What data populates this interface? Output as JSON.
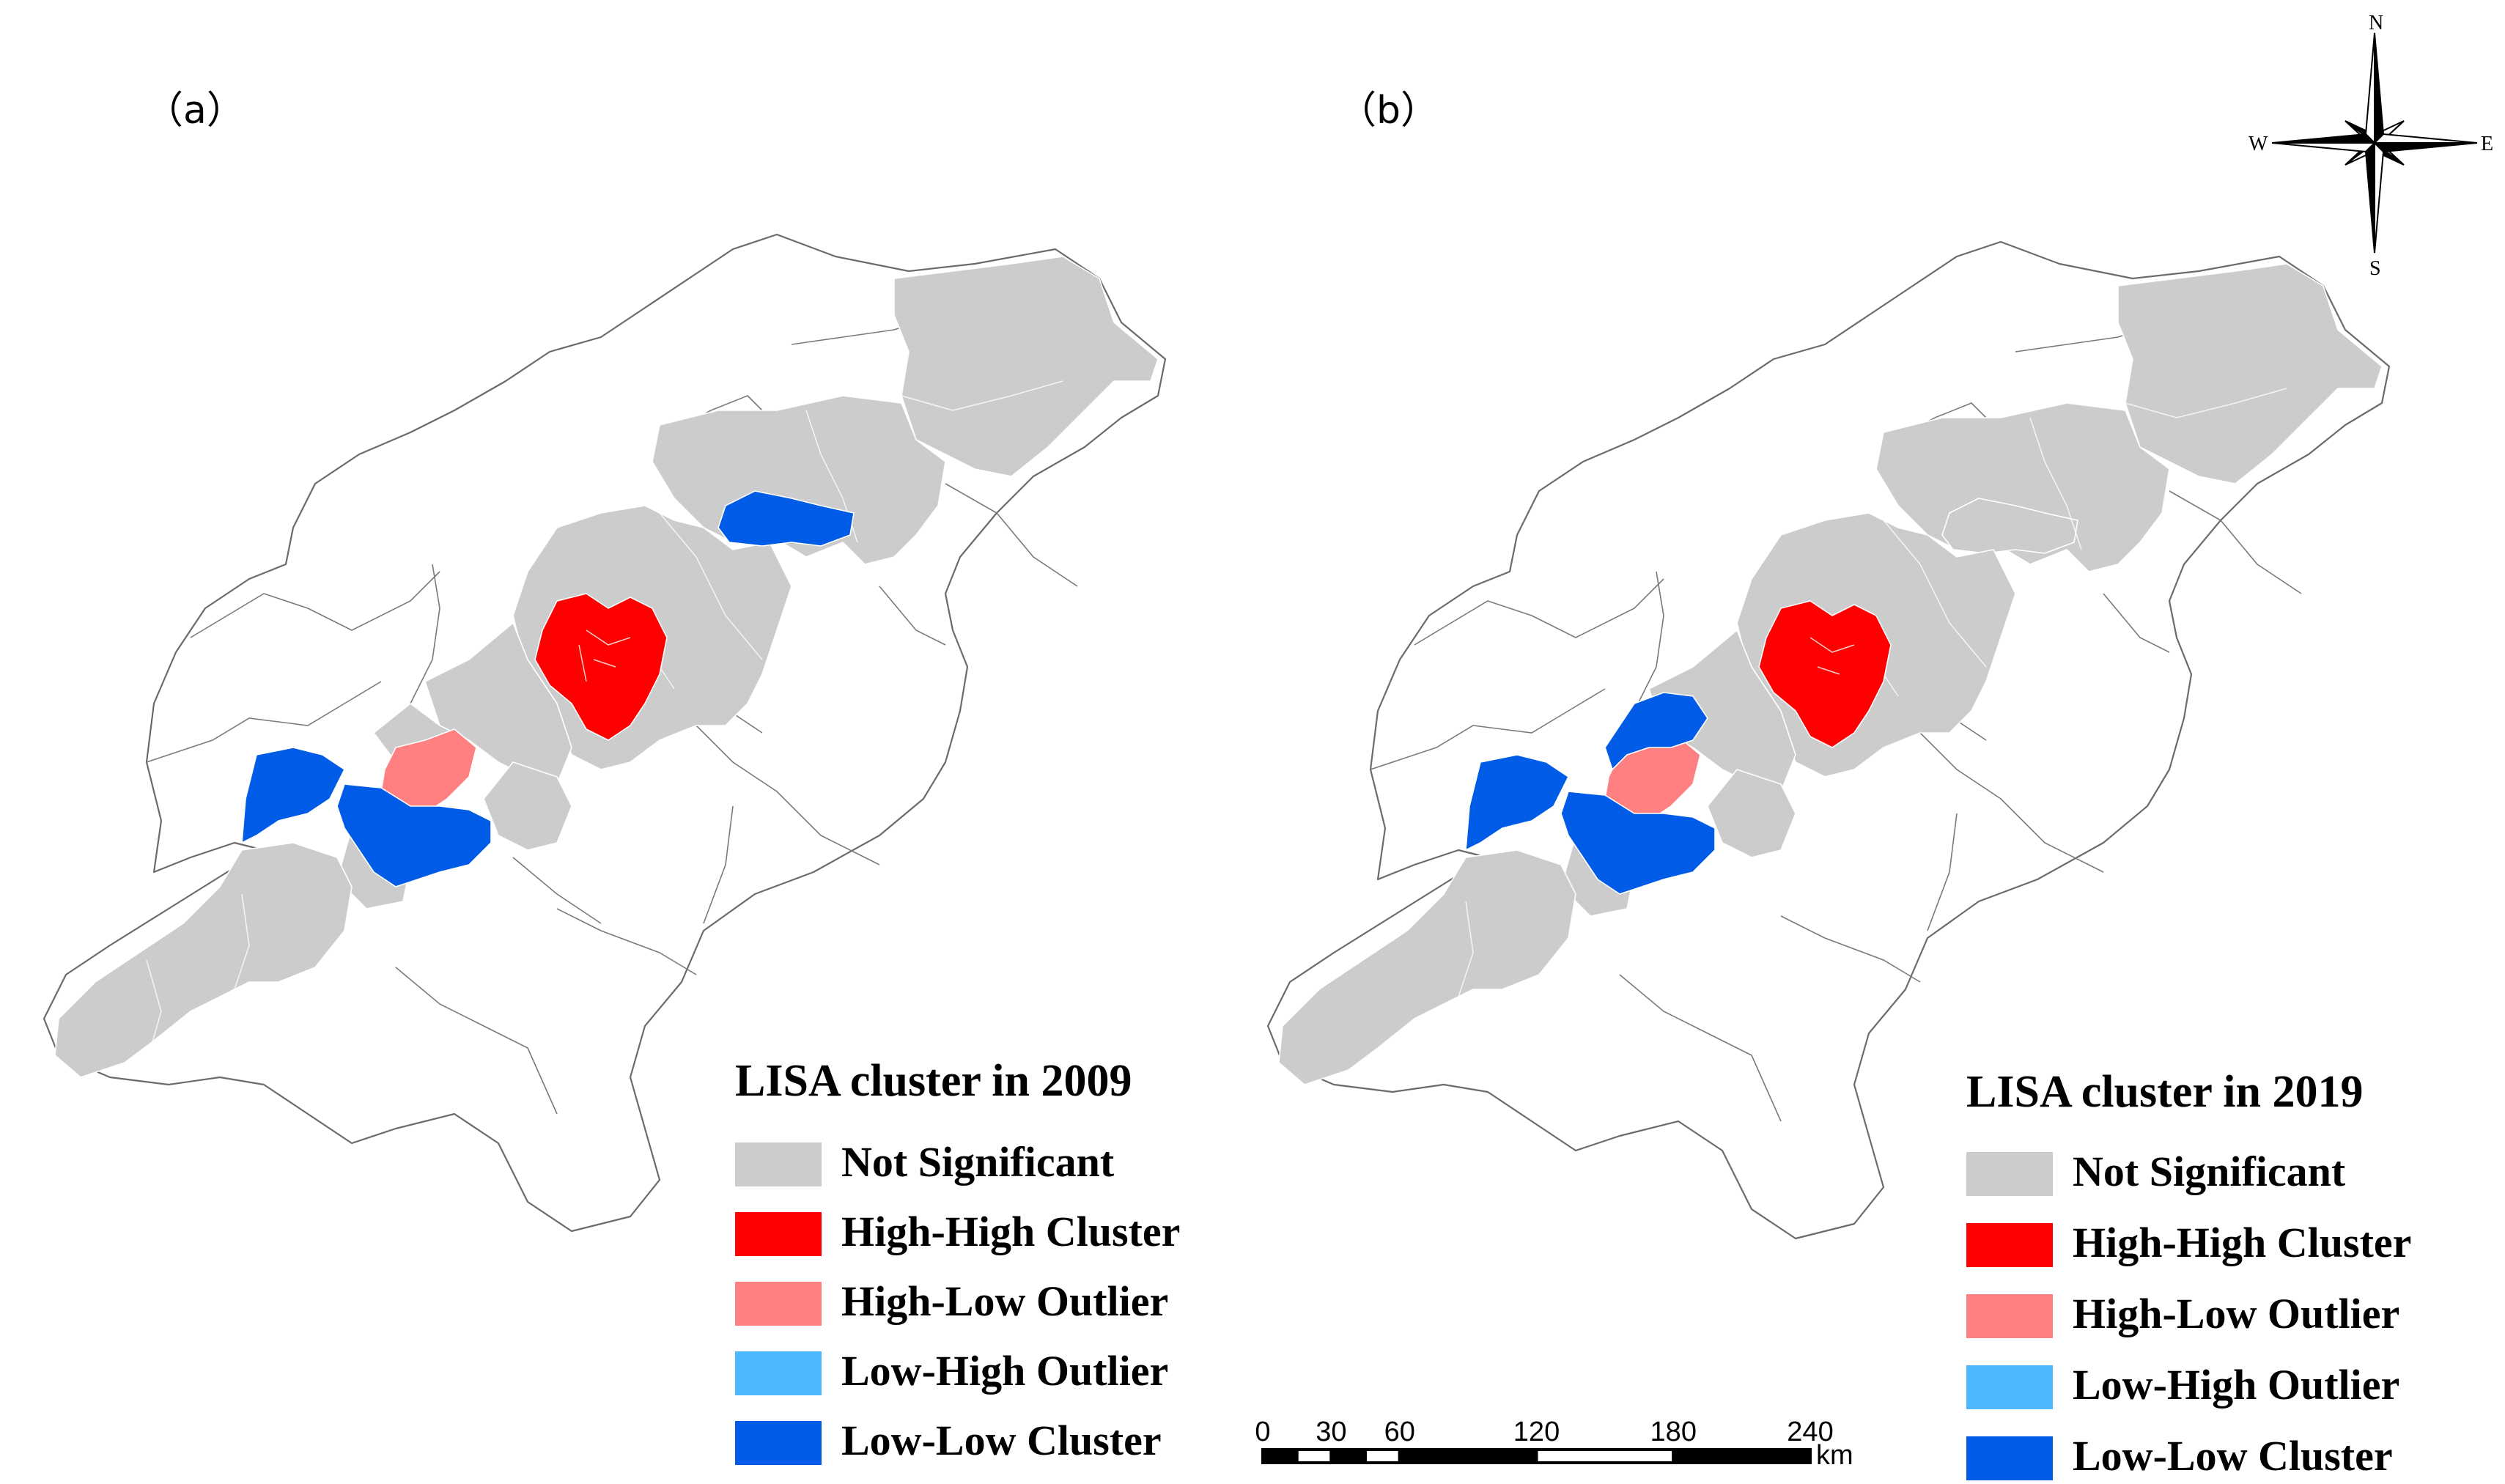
{
  "panels": [
    {
      "label": "（a）",
      "legend": {
        "title": "LISA cluster in 2009",
        "items": [
          {
            "label": "Not Significant",
            "color": "#cccccc"
          },
          {
            "label": "High-High Cluster",
            "color": "#ff0000"
          },
          {
            "label": "High-Low Outlier",
            "color": "#ff8080"
          },
          {
            "label": "Low-High Outlier",
            "color": "#4db8ff"
          },
          {
            "label": "Low-Low Cluster",
            "color": "#005ce6"
          }
        ]
      }
    },
    {
      "label": "（b）",
      "legend": {
        "title": "LISA cluster in 2019",
        "items": [
          {
            "label": "Not Significant",
            "color": "#cccccc"
          },
          {
            "label": "High-High Cluster",
            "color": "#ff0000"
          },
          {
            "label": "High-Low Outlier",
            "color": "#ff8080"
          },
          {
            "label": "Low-High Outlier",
            "color": "#4db8ff"
          },
          {
            "label": "Low-Low Cluster",
            "color": "#005ce6"
          }
        ]
      }
    }
  ],
  "scale_bar": {
    "ticks": [
      "0",
      "30",
      "60",
      "120",
      "180",
      "240"
    ],
    "unit": "km"
  },
  "compass": {
    "n": "N",
    "s": "S",
    "e": "E",
    "w": "W"
  }
}
